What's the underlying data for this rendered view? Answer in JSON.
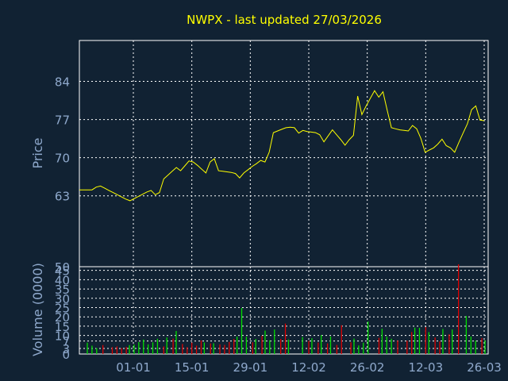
{
  "chart_data": [
    {
      "type": "line",
      "title": "NWPX - last updated 27/03/2026",
      "ylabel": "Price",
      "ylim": [
        50,
        91.5
      ],
      "yticks": [
        50,
        63,
        70,
        77,
        84
      ],
      "grid": true,
      "line_color": "#ffff00",
      "series": [
        {
          "values": [
            64.1,
            64.1,
            64.1,
            64.1,
            64.6,
            64.8,
            64.4,
            64.0,
            63.6,
            63.2,
            62.8,
            62.4,
            62.1,
            62.5,
            62.9,
            63.3,
            63.7,
            64.0,
            63.2,
            63.6,
            66.1,
            66.8,
            67.5,
            68.2,
            67.6,
            68.5,
            69.4,
            69.2,
            68.6,
            67.9,
            67.2,
            69.2,
            69.8,
            67.6,
            67.5,
            67.4,
            67.3,
            67.1,
            66.3,
            67.2,
            67.8,
            68.4,
            68.9,
            69.5,
            69.2,
            71.0,
            74.6,
            74.9,
            75.2,
            75.5,
            75.6,
            75.5,
            74.5,
            75.0,
            74.8,
            74.7,
            74.6,
            74.2,
            72.9,
            74.0,
            75.1,
            74.2,
            73.3,
            72.3,
            73.3,
            74.1,
            81.3,
            77.9,
            79.5,
            80.9,
            82.3,
            81.1,
            82.1,
            78.7,
            75.5,
            75.3,
            75.1,
            75.0,
            74.9,
            75.9,
            75.3,
            73.5,
            71.0,
            71.4,
            71.8,
            72.5,
            73.4,
            72.2,
            71.8,
            71.0,
            72.8,
            74.5,
            76.2,
            78.8,
            79.5,
            76.9,
            76.8
          ]
        }
      ]
    },
    {
      "type": "bar",
      "ylabel": "Volume (0000)",
      "ylim": [
        0,
        47
      ],
      "yticks": [
        0,
        3,
        7,
        10,
        15,
        20,
        25,
        30,
        35,
        40,
        45
      ],
      "xticks": [
        "01-01",
        "15-01",
        "29-01",
        "12-02",
        "26-02",
        "12-03",
        "26-03"
      ],
      "grid": true,
      "up_color": "#00dd00",
      "down_color": "#dd0000",
      "series": [
        {
          "name": "up",
          "values": [
            6.1,
            4.5,
            3.2,
            0,
            0,
            0,
            0,
            0,
            0,
            4.8,
            5.1,
            6.4,
            7.8,
            5.2,
            6.3,
            8.2,
            0,
            8.9,
            0,
            12.4,
            0,
            0,
            0,
            0,
            0,
            6.2,
            0,
            5.8,
            0,
            0,
            0,
            0,
            9.4,
            24.8,
            9.3,
            0,
            8.1,
            0,
            12.6,
            7.4,
            13.2,
            0,
            0,
            7.8,
            0,
            0,
            9.1,
            0,
            8.5,
            0,
            10.2,
            0,
            9.4,
            0,
            0,
            0,
            0,
            8.3,
            4.6,
            6.1,
            17.5,
            0,
            0,
            13.6,
            9.4,
            8.2,
            0,
            0,
            0,
            0,
            14.2,
            14.1,
            0,
            11.8,
            0,
            0,
            13.5,
            0,
            13.2,
            0,
            0,
            20.5,
            9.4,
            7.2,
            0,
            7.3
          ]
        },
        {
          "name": "down",
          "values": [
            0,
            0,
            0,
            4.8,
            0,
            3.7,
            4.1,
            3.2,
            3.8,
            0,
            0,
            0,
            0,
            0,
            0,
            0,
            4.1,
            0,
            8.3,
            0,
            5.4,
            3.7,
            6.1,
            4.5,
            7.3,
            0,
            5.7,
            0,
            5.2,
            4.9,
            6.5,
            8.1,
            0,
            0,
            0,
            6.3,
            0,
            9.8,
            0,
            0,
            0,
            8.1,
            16.4,
            0,
            0,
            0,
            0,
            7.1,
            0,
            6.2,
            0,
            5.7,
            0,
            4.9,
            15.5,
            0,
            6.3,
            0,
            0,
            0,
            0,
            0,
            8.7,
            0,
            0,
            0,
            7.3,
            0,
            7.2,
            11.8,
            0,
            0,
            14.5,
            0,
            8.9,
            6.8,
            0,
            10.6,
            0,
            48.3,
            0,
            0,
            0,
            0,
            8.6,
            0
          ]
        }
      ]
    }
  ]
}
